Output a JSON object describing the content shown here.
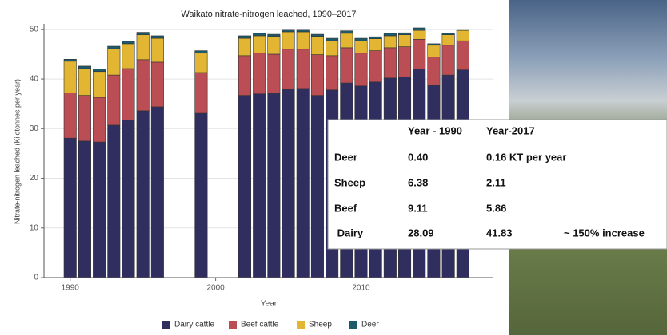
{
  "chart_data": {
    "type": "bar",
    "stacked": true,
    "title": "Waikato nitrate-nitrogen leached, 1990–2017",
    "x_label": "Year",
    "y_label": "Nitrate-nitrogen leached (Kilotonnes per year)",
    "x": [
      1990,
      1991,
      1992,
      1993,
      1994,
      1995,
      1996,
      1999,
      2002,
      2003,
      2004,
      2005,
      2006,
      2007,
      2008,
      2009,
      2010,
      2011,
      2012,
      2013,
      2014,
      2015,
      2016,
      2017
    ],
    "series": [
      {
        "name": "Dairy cattle",
        "color": "#2f2e5f",
        "values": [
          28.09,
          27.5,
          27.3,
          30.7,
          31.7,
          33.6,
          34.4,
          33.1,
          36.7,
          37.0,
          37.1,
          37.9,
          38.1,
          36.7,
          37.8,
          39.2,
          38.6,
          39.4,
          40.2,
          40.4,
          42.0,
          38.7,
          40.8,
          41.83
        ]
      },
      {
        "name": "Beef cattle",
        "color": "#bb4d54",
        "values": [
          9.11,
          9.2,
          9.0,
          10.1,
          10.4,
          10.3,
          9.0,
          8.2,
          8.0,
          8.2,
          7.9,
          8.1,
          7.9,
          8.2,
          6.9,
          7.1,
          6.6,
          6.3,
          6.1,
          6.1,
          6.0,
          5.7,
          6.0,
          5.86
        ]
      },
      {
        "name": "Sheep",
        "color": "#e2b632",
        "values": [
          6.38,
          5.4,
          5.2,
          5.3,
          5.0,
          5.0,
          4.8,
          3.9,
          3.5,
          3.5,
          3.6,
          3.5,
          3.5,
          3.7,
          3.0,
          2.9,
          2.5,
          2.4,
          2.4,
          2.4,
          1.8,
          2.4,
          2.1,
          2.11
        ]
      },
      {
        "name": "Deer",
        "color": "#1d5a6c",
        "values": [
          0.4,
          0.5,
          0.5,
          0.5,
          0.5,
          0.5,
          0.5,
          0.5,
          0.5,
          0.5,
          0.4,
          0.5,
          0.5,
          0.4,
          0.5,
          0.5,
          0.5,
          0.4,
          0.5,
          0.4,
          0.5,
          0.3,
          0.3,
          0.16
        ]
      }
    ],
    "xlim": [
      1988.2,
      2019.1
    ],
    "xticks": [
      1990,
      2000,
      2010
    ],
    "ylim": [
      0,
      51.1
    ],
    "yticks": [
      0,
      10,
      20,
      30,
      40,
      50
    ],
    "grid": true,
    "legend": "bottom"
  },
  "table": {
    "header": [
      "Year - 1990",
      "Year-2017"
    ],
    "rows": [
      [
        "Deer",
        "0.40",
        "0.16 KT per year"
      ],
      [
        "Sheep",
        "6.38",
        "2.11"
      ],
      [
        "Beef",
        "9.11",
        "5.86"
      ],
      [
        " Dairy",
        "28.09",
        "41.83",
        "~ 150% increase"
      ]
    ]
  }
}
